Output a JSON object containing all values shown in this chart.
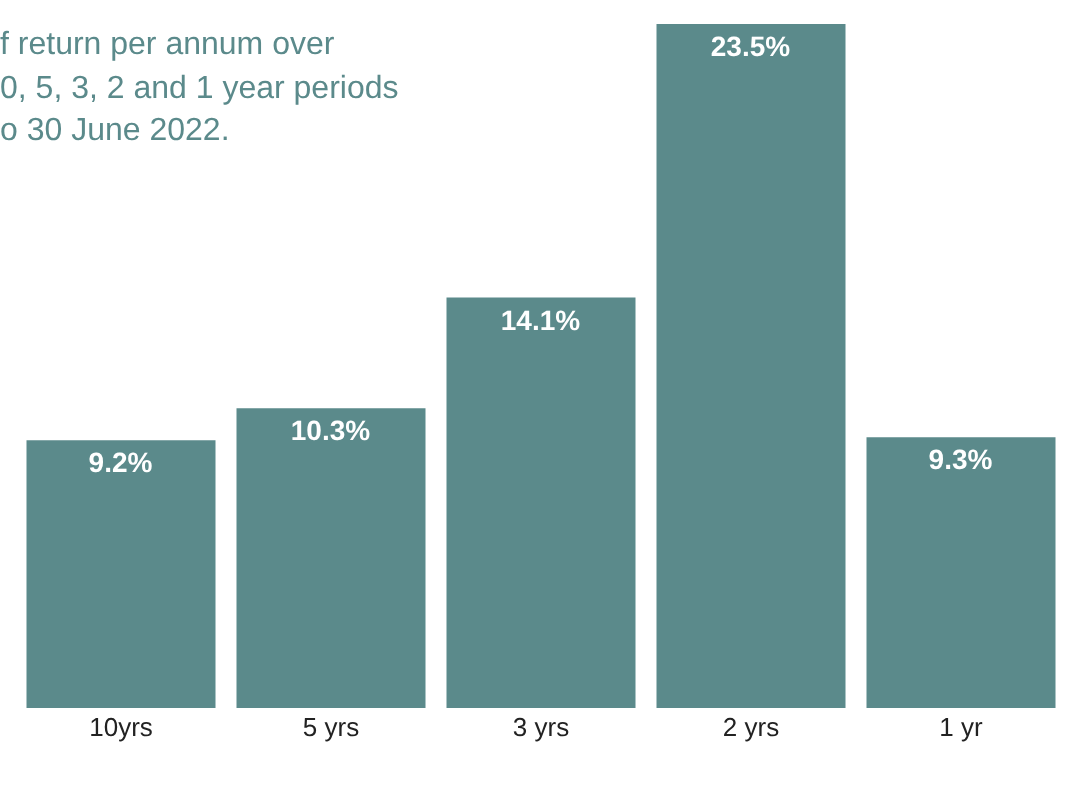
{
  "chart_data": {
    "type": "bar",
    "categories": [
      "10yrs",
      "5 yrs",
      "3 yrs",
      "2 yrs",
      "1 yr"
    ],
    "values": [
      9.2,
      10.3,
      14.1,
      23.5,
      9.3
    ],
    "value_labels": [
      "9.2%",
      "10.3%",
      "14.1%",
      "23.5%",
      "9.3%"
    ],
    "color": "#5b8a8b",
    "annotations": [
      "f return per annum over",
      "0, 5, 3, 2 and 1 year periods",
      "o 30 June 2022."
    ]
  }
}
